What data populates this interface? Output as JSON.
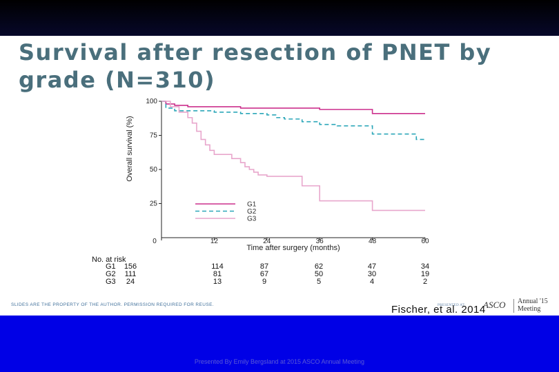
{
  "slide": {
    "title_line1": "Survival after resection of PNET by",
    "title_line2": "grade (N=310)",
    "disclaimer": "SLIDES ARE THE PROPERTY OF THE AUTHOR. PERMISSION REQUIRED FOR REUSE.",
    "citation": "Fischer, et al. 2014",
    "footer": "Presented By Emily Bergsland at 2015 ASCO Annual Meeting",
    "logo": {
      "presented_text": "PRESENTED AT:",
      "brand": "ASCO",
      "annual_line1": "Annual '15",
      "annual_line2": "Meeting"
    },
    "colors": {
      "title": "#4a6f7c",
      "top_bar": "#000000",
      "bottom_bar": "#0000e6"
    }
  },
  "chart_data": {
    "type": "line",
    "step": true,
    "xlabel": "Time after surgery (months)",
    "ylabel": "Overall survival (%)",
    "xlim": [
      0,
      60
    ],
    "ylim": [
      0,
      100
    ],
    "xticks": [
      0,
      12,
      24,
      36,
      48,
      60
    ],
    "yticks": [
      25,
      50,
      75,
      100
    ],
    "legend_position": "center",
    "series": [
      {
        "name": "G1",
        "color": "#cc2e8c",
        "dash": "solid",
        "x": [
          0,
          1,
          3,
          6,
          12,
          18,
          24,
          30,
          36,
          42,
          46,
          48,
          54,
          60
        ],
        "y": [
          100,
          98,
          97,
          96,
          96,
          95,
          95,
          95,
          94,
          94,
          94,
          91,
          91,
          91
        ]
      },
      {
        "name": "G2",
        "color": "#2aa6b8",
        "dash": "dashed",
        "x": [
          0,
          1,
          3,
          6,
          12,
          18,
          24,
          26,
          28,
          32,
          36,
          40,
          47,
          48,
          52,
          56,
          58,
          60
        ],
        "y": [
          100,
          95,
          93,
          93,
          92,
          91,
          90,
          88,
          87,
          85,
          83,
          82,
          82,
          76,
          76,
          76,
          72,
          72
        ]
      },
      {
        "name": "G3",
        "color": "#e8a6cc",
        "dash": "solid",
        "x": [
          0,
          2,
          4,
          6,
          7,
          8,
          9,
          10,
          11,
          12,
          14,
          16,
          18,
          19,
          20,
          21,
          22,
          24,
          30,
          32,
          36,
          48,
          60
        ],
        "y": [
          100,
          96,
          92,
          88,
          84,
          78,
          72,
          68,
          64,
          61,
          61,
          58,
          55,
          52,
          50,
          48,
          46,
          45,
          45,
          38,
          27,
          20,
          20
        ]
      }
    ],
    "risk_table": {
      "title": "No. at risk",
      "times": [
        "0",
        "12",
        "24",
        "36",
        "48",
        "60"
      ],
      "rows": [
        {
          "label": "G1",
          "values": [
            "156",
            "114",
            "87",
            "62",
            "47",
            "34"
          ]
        },
        {
          "label": "G2",
          "values": [
            "111",
            "81",
            "67",
            "50",
            "30",
            "19"
          ]
        },
        {
          "label": "G3",
          "values": [
            "24",
            "13",
            "9",
            "5",
            "4",
            "2"
          ]
        }
      ]
    }
  }
}
